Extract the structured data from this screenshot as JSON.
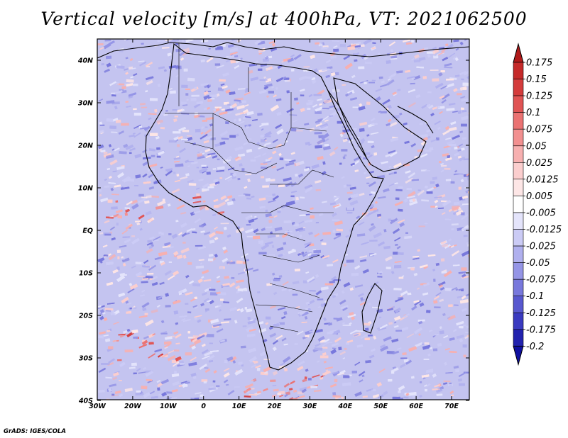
{
  "title": "Vertical velocity [m/s] at 400hPa, VT: 2021062500",
  "footer": "GrADS: IGES/COLA",
  "map": {
    "lon_range": [
      -30,
      75
    ],
    "lat_range": [
      -40,
      45
    ],
    "lon_ticks": [
      "30W",
      "20W",
      "10W",
      "0",
      "10E",
      "20E",
      "30E",
      "40E",
      "50E",
      "60E",
      "70E"
    ],
    "lat_ticks": [
      "40N",
      "30N",
      "20N",
      "10N",
      "EQ",
      "10S",
      "20S",
      "30S",
      "40S"
    ]
  },
  "colorbar": {
    "labels": [
      "0.175",
      "0.15",
      "0.125",
      "0.1",
      "0.075",
      "0.05",
      "0.025",
      "0.0125",
      "0.005",
      "-0.005",
      "-0.0125",
      "-0.025",
      "-0.05",
      "-0.075",
      "-0.1",
      "-0.125",
      "-0.175",
      "-0.2"
    ],
    "colors": [
      "#b01a1a",
      "#c52a2a",
      "#d43c3c",
      "#e05454",
      "#ea7272",
      "#f29090",
      "#f7b0b0",
      "#fbcece",
      "#fde6e6",
      "#ffffff",
      "#e4e4fb",
      "#cbcbf5",
      "#b0b0ee",
      "#9595e6",
      "#7878dc",
      "#5858cf",
      "#3a3ac0",
      "#2222ae",
      "#1010a0"
    ]
  }
}
